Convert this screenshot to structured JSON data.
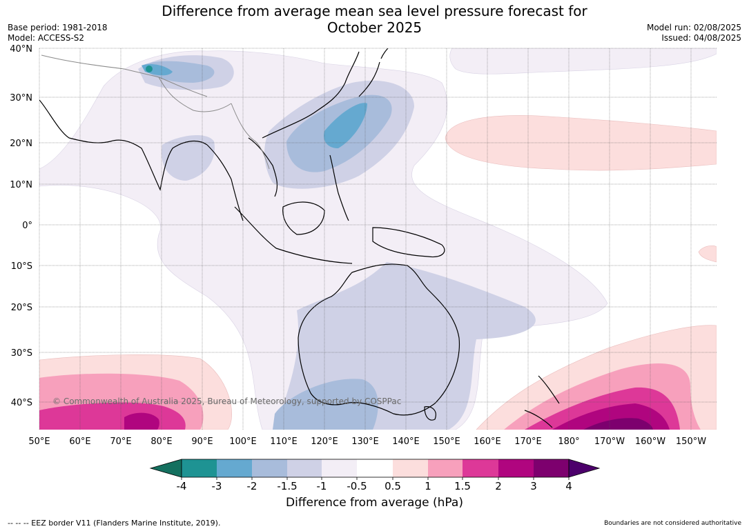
{
  "header": {
    "title_line1": "Difference from average mean sea level pressure forecast for",
    "title_line2": "October 2025",
    "base_period": "Base period: 1981-2018",
    "model": "Model: ACCESS-S2",
    "model_run": "Model run: 02/08/2025",
    "issued": "Issued: 04/08/2025"
  },
  "map": {
    "copyright": "© Commonwealth of Australia 2025, Bureau of Meteorology, supported by COSPPac",
    "lat_labels": [
      "40°N",
      "30°N",
      "20°N",
      "10°N",
      "0°",
      "10°S",
      "20°S",
      "30°S",
      "40°S"
    ],
    "lon_labels": [
      "50°E",
      "60°E",
      "70°E",
      "80°E",
      "90°E",
      "100°E",
      "110°E",
      "120°E",
      "130°E",
      "140°E",
      "150°E",
      "160°E",
      "170°E",
      "180°",
      "170°W",
      "160°W",
      "150°W"
    ]
  },
  "colorbar": {
    "label": "Difference from average (hPa)",
    "ticks": [
      "-4",
      "-3",
      "-2",
      "-1.5",
      "-1",
      "-0.5",
      "0.5",
      "1",
      "1.5",
      "2",
      "3",
      "4"
    ],
    "colors": [
      "#14705f",
      "#1e9393",
      "#65a9d0",
      "#a8bcdb",
      "#cfd1e6",
      "#f3eef6",
      "#ffffff",
      "#fcdedd",
      "#f7a0bc",
      "#dd3898",
      "#b0057f",
      "#7d006e",
      "#4c006b"
    ]
  },
  "footer": {
    "eez": "--  --  -- EEZ border V11 (Flanders Marine Institute, 2019).",
    "boundaries": "Boundaries are not considered authoritative"
  }
}
